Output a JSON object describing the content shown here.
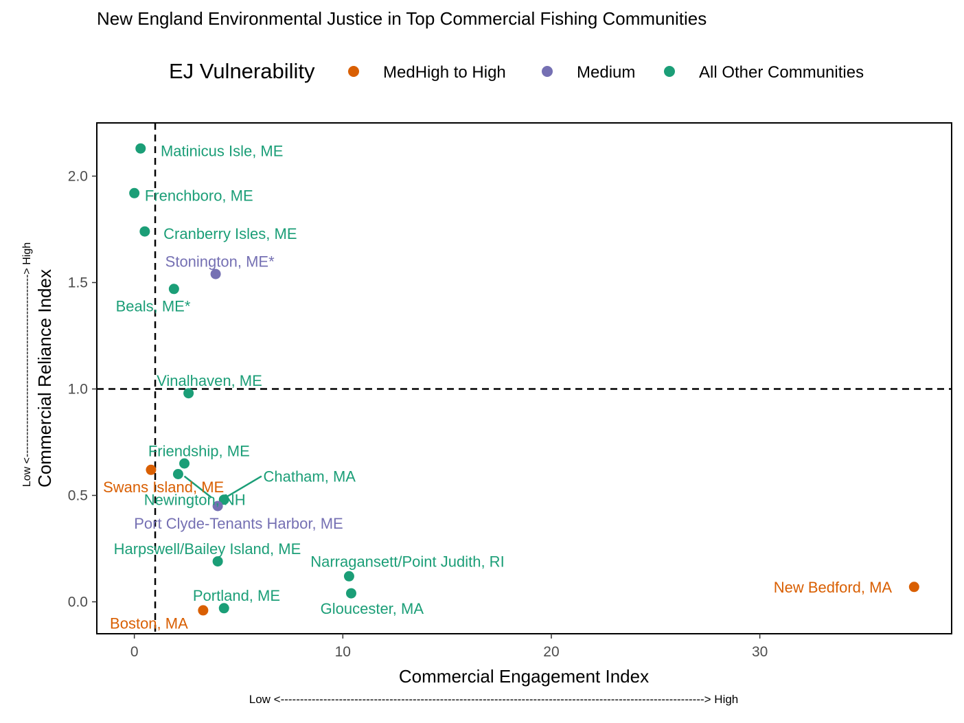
{
  "chart_data": {
    "type": "scatter",
    "title": "New England Environmental Justice in Top Commercial Fishing Communities",
    "xlabel": "Commercial Engagement Index",
    "ylabel": "Commercial Reliance Index",
    "x_arrow": "Low <-------------------------------------------------------------------------------------------------------------> High",
    "y_arrow": "Low <--------------------------------------------------> High",
    "xlim": [
      -1.8,
      39.2
    ],
    "ylim": [
      -0.15,
      2.25
    ],
    "xticks": [
      0,
      10,
      20,
      30
    ],
    "yticks": [
      0.0,
      0.5,
      1.0,
      1.5,
      2.0
    ],
    "ytick_labels": [
      "0.0",
      "0.5",
      "1.0",
      "1.5",
      "2.0"
    ],
    "grid": false,
    "reference_lines": {
      "x": 1,
      "y": 1
    },
    "legend": {
      "title": "EJ Vulnerability",
      "position": "top",
      "entries": [
        {
          "name": "MedHigh to High",
          "color": "#d95f02"
        },
        {
          "name": "Medium",
          "color": "#7570b3"
        },
        {
          "name": "All Other Communities",
          "color": "#1b9e77"
        }
      ]
    },
    "points": [
      {
        "label": "Matinicus Isle, ME",
        "x": 0.3,
        "y": 2.13,
        "group": 2,
        "lx": 4.2,
        "ly": 2.12
      },
      {
        "label": "Frenchboro, ME",
        "x": 0.0,
        "y": 1.92,
        "group": 2,
        "lx": 3.1,
        "ly": 1.91
      },
      {
        "label": "Cranberry Isles, ME",
        "x": 0.5,
        "y": 1.74,
        "group": 2,
        "lx": 4.6,
        "ly": 1.73
      },
      {
        "label": "Stonington, ME*",
        "x": 3.9,
        "y": 1.54,
        "group": 1,
        "lx": 4.1,
        "ly": 1.6
      },
      {
        "label": "Beals, ME*",
        "x": 1.9,
        "y": 1.47,
        "group": 2,
        "lx": 0.9,
        "ly": 1.39
      },
      {
        "label": "Vinalhaven, ME",
        "x": 2.6,
        "y": 0.98,
        "group": 2,
        "lx": 3.6,
        "ly": 1.04
      },
      {
        "label": "Friendship, ME",
        "x": 2.4,
        "y": 0.65,
        "group": 2,
        "lx": 3.1,
        "ly": 0.71
      },
      {
        "label": "Swans Island, ME",
        "x": 0.8,
        "y": 0.62,
        "group": 0,
        "lx": 1.4,
        "ly": 0.54
      },
      {
        "label": "Chatham, MA",
        "x": 2.1,
        "y": 0.6,
        "group": 2,
        "lx": 8.4,
        "ly": 0.59,
        "leader": [
          6.1,
          0.59,
          4.2,
          0.48
        ]
      },
      {
        "label": "Newington, NH",
        "x": 4.3,
        "y": 0.48,
        "group": 2,
        "lx": 2.9,
        "ly": 0.48,
        "leader": [
          2.4,
          0.59,
          3.7,
          0.49
        ]
      },
      {
        "label": "Port Clyde-Tenants Harbor, ME",
        "x": 4.0,
        "y": 0.45,
        "group": 1,
        "lx": 5.0,
        "ly": 0.37
      },
      {
        "label": "Harpswell/Bailey Island, ME",
        "x": 4.0,
        "y": 0.19,
        "group": 2,
        "lx": 3.5,
        "ly": 0.25
      },
      {
        "label": "Narragansett/Point Judith, RI",
        "x": 10.3,
        "y": 0.12,
        "group": 2,
        "lx": 13.1,
        "ly": 0.19
      },
      {
        "label": "Gloucester, MA",
        "x": 10.4,
        "y": 0.04,
        "group": 2,
        "lx": 11.4,
        "ly": -0.03
      },
      {
        "label": "New Bedford, MA",
        "x": 37.4,
        "y": 0.07,
        "group": 0,
        "lx": 33.5,
        "ly": 0.07
      },
      {
        "label": "Portland, ME",
        "x": 4.3,
        "y": -0.03,
        "group": 2,
        "lx": 4.9,
        "ly": 0.03
      },
      {
        "label": "Boston, MA",
        "x": 3.3,
        "y": -0.04,
        "group": 0,
        "lx": 0.7,
        "ly": -0.1
      }
    ]
  }
}
